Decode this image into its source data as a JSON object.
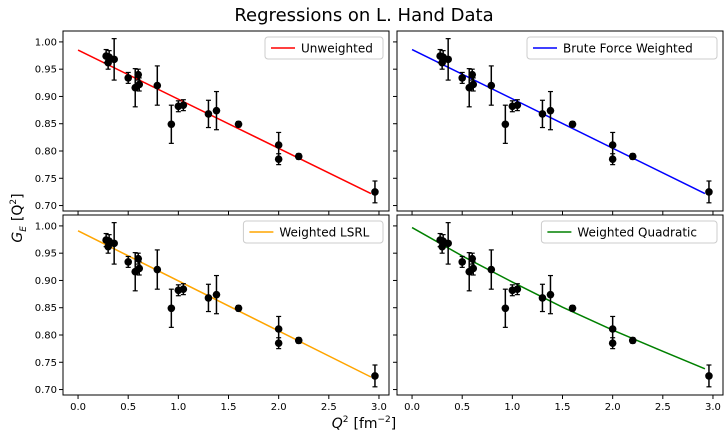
{
  "figure": {
    "title": "Regressions on L. Hand Data",
    "xlabel_main": "Q",
    "xlabel_sup": "2",
    "xlabel_unit": "[fm",
    "xlabel_unit_sup": "−2",
    "xlabel_close": "]",
    "ylabel_main": "G",
    "ylabel_sub": "E",
    "ylabel_unit": "[Q",
    "ylabel_unit_sup": "2",
    "ylabel_close": "]"
  },
  "chart_data": [
    {
      "type": "scatter",
      "legend": "Unweighted",
      "color": "#ff0000",
      "legend_placement": "top-right",
      "xlim": [
        -0.15,
        3.1
      ],
      "ylim": [
        0.69,
        1.02
      ],
      "x_ticks": [
        "0.0",
        "0.5",
        "1.0",
        "1.5",
        "2.0",
        "2.5",
        "3.0"
      ],
      "y_ticks": [
        "1.00",
        "0.95",
        "0.90",
        "0.85",
        "0.80",
        "0.75",
        "0.70"
      ],
      "fit": {
        "x": [
          0.0,
          2.92
        ],
        "y": [
          0.985,
          0.722
        ]
      },
      "points": [
        {
          "x": 0.28,
          "y": 0.974,
          "err": 0.012
        },
        {
          "x": 0.3,
          "y": 0.962,
          "err": 0.012
        },
        {
          "x": 0.31,
          "y": 0.972,
          "err": 0.012
        },
        {
          "x": 0.36,
          "y": 0.968,
          "err": 0.038
        },
        {
          "x": 0.5,
          "y": 0.934,
          "err": 0.01
        },
        {
          "x": 0.57,
          "y": 0.916,
          "err": 0.035
        },
        {
          "x": 0.6,
          "y": 0.94,
          "err": 0.01
        },
        {
          "x": 0.61,
          "y": 0.922,
          "err": 0.012
        },
        {
          "x": 0.79,
          "y": 0.92,
          "err": 0.036
        },
        {
          "x": 0.93,
          "y": 0.849,
          "err": 0.035
        },
        {
          "x": 1.0,
          "y": 0.882,
          "err": 0.01
        },
        {
          "x": 1.05,
          "y": 0.884,
          "err": 0.01
        },
        {
          "x": 1.3,
          "y": 0.868,
          "err": 0.025
        },
        {
          "x": 1.38,
          "y": 0.874,
          "err": 0.035
        },
        {
          "x": 1.6,
          "y": 0.849,
          "err": 0.005
        },
        {
          "x": 2.0,
          "y": 0.811,
          "err": 0.023
        },
        {
          "x": 2.0,
          "y": 0.785,
          "err": 0.01
        },
        {
          "x": 2.2,
          "y": 0.79,
          "err": 0.005
        },
        {
          "x": 2.96,
          "y": 0.725,
          "err": 0.02
        }
      ]
    },
    {
      "type": "scatter",
      "legend": "Brute Force Weighted",
      "color": "#0000ff",
      "legend_placement": "top-right",
      "xlim": [
        -0.15,
        3.1
      ],
      "ylim": [
        0.69,
        1.02
      ],
      "x_ticks": [
        "0.0",
        "0.5",
        "1.0",
        "1.5",
        "2.0",
        "2.5",
        "3.0"
      ],
      "y_ticks": [],
      "fit": {
        "x": [
          0.0,
          2.92
        ],
        "y": [
          0.986,
          0.722
        ]
      },
      "points": [
        {
          "x": 0.28,
          "y": 0.974,
          "err": 0.012
        },
        {
          "x": 0.3,
          "y": 0.962,
          "err": 0.012
        },
        {
          "x": 0.31,
          "y": 0.972,
          "err": 0.012
        },
        {
          "x": 0.36,
          "y": 0.968,
          "err": 0.038
        },
        {
          "x": 0.5,
          "y": 0.934,
          "err": 0.01
        },
        {
          "x": 0.57,
          "y": 0.916,
          "err": 0.035
        },
        {
          "x": 0.6,
          "y": 0.94,
          "err": 0.01
        },
        {
          "x": 0.61,
          "y": 0.922,
          "err": 0.012
        },
        {
          "x": 0.79,
          "y": 0.92,
          "err": 0.036
        },
        {
          "x": 0.93,
          "y": 0.849,
          "err": 0.035
        },
        {
          "x": 1.0,
          "y": 0.882,
          "err": 0.01
        },
        {
          "x": 1.05,
          "y": 0.884,
          "err": 0.01
        },
        {
          "x": 1.3,
          "y": 0.868,
          "err": 0.025
        },
        {
          "x": 1.38,
          "y": 0.874,
          "err": 0.035
        },
        {
          "x": 1.6,
          "y": 0.849,
          "err": 0.005
        },
        {
          "x": 2.0,
          "y": 0.811,
          "err": 0.023
        },
        {
          "x": 2.0,
          "y": 0.785,
          "err": 0.01
        },
        {
          "x": 2.2,
          "y": 0.79,
          "err": 0.005
        },
        {
          "x": 2.96,
          "y": 0.725,
          "err": 0.02
        }
      ]
    },
    {
      "type": "scatter",
      "legend": "Weighted LSRL",
      "color": "#ffa500",
      "legend_placement": "top-right",
      "xlim": [
        -0.15,
        3.1
      ],
      "ylim": [
        0.69,
        1.02
      ],
      "x_ticks": [
        "0.0",
        "0.5",
        "1.0",
        "1.5",
        "2.0",
        "2.5",
        "3.0"
      ],
      "y_ticks": [
        "1.00",
        "0.95",
        "0.90",
        "0.85",
        "0.80",
        "0.75",
        "0.70"
      ],
      "fit": {
        "x": [
          0.0,
          2.92
        ],
        "y": [
          0.991,
          0.723
        ]
      },
      "points": [
        {
          "x": 0.28,
          "y": 0.974,
          "err": 0.012
        },
        {
          "x": 0.3,
          "y": 0.962,
          "err": 0.012
        },
        {
          "x": 0.31,
          "y": 0.972,
          "err": 0.012
        },
        {
          "x": 0.36,
          "y": 0.968,
          "err": 0.038
        },
        {
          "x": 0.5,
          "y": 0.934,
          "err": 0.01
        },
        {
          "x": 0.57,
          "y": 0.916,
          "err": 0.035
        },
        {
          "x": 0.6,
          "y": 0.94,
          "err": 0.01
        },
        {
          "x": 0.61,
          "y": 0.922,
          "err": 0.012
        },
        {
          "x": 0.79,
          "y": 0.92,
          "err": 0.036
        },
        {
          "x": 0.93,
          "y": 0.849,
          "err": 0.035
        },
        {
          "x": 1.0,
          "y": 0.882,
          "err": 0.01
        },
        {
          "x": 1.05,
          "y": 0.884,
          "err": 0.01
        },
        {
          "x": 1.3,
          "y": 0.868,
          "err": 0.025
        },
        {
          "x": 1.38,
          "y": 0.874,
          "err": 0.035
        },
        {
          "x": 1.6,
          "y": 0.849,
          "err": 0.005
        },
        {
          "x": 2.0,
          "y": 0.811,
          "err": 0.023
        },
        {
          "x": 2.0,
          "y": 0.785,
          "err": 0.01
        },
        {
          "x": 2.2,
          "y": 0.79,
          "err": 0.005
        },
        {
          "x": 2.96,
          "y": 0.725,
          "err": 0.02
        }
      ]
    },
    {
      "type": "scatter",
      "legend": "Weighted Quadratic",
      "color": "#008000",
      "legend_placement": "top-right",
      "xlim": [
        -0.15,
        3.1
      ],
      "ylim": [
        0.69,
        1.02
      ],
      "x_ticks": [
        "0.0",
        "0.5",
        "1.0",
        "1.5",
        "2.0",
        "2.5",
        "3.0"
      ],
      "y_ticks": [],
      "fit": {
        "x": [
          0.0,
          0.5,
          1.0,
          1.5,
          2.0,
          2.5,
          2.92
        ],
        "y": [
          0.997,
          0.945,
          0.897,
          0.851,
          0.809,
          0.77,
          0.738
        ]
      },
      "points": [
        {
          "x": 0.28,
          "y": 0.974,
          "err": 0.012
        },
        {
          "x": 0.3,
          "y": 0.962,
          "err": 0.012
        },
        {
          "x": 0.31,
          "y": 0.972,
          "err": 0.012
        },
        {
          "x": 0.36,
          "y": 0.968,
          "err": 0.038
        },
        {
          "x": 0.5,
          "y": 0.934,
          "err": 0.01
        },
        {
          "x": 0.57,
          "y": 0.916,
          "err": 0.035
        },
        {
          "x": 0.6,
          "y": 0.94,
          "err": 0.01
        },
        {
          "x": 0.61,
          "y": 0.922,
          "err": 0.012
        },
        {
          "x": 0.79,
          "y": 0.92,
          "err": 0.036
        },
        {
          "x": 0.93,
          "y": 0.849,
          "err": 0.035
        },
        {
          "x": 1.0,
          "y": 0.882,
          "err": 0.01
        },
        {
          "x": 1.05,
          "y": 0.884,
          "err": 0.01
        },
        {
          "x": 1.3,
          "y": 0.868,
          "err": 0.025
        },
        {
          "x": 1.38,
          "y": 0.874,
          "err": 0.035
        },
        {
          "x": 1.6,
          "y": 0.849,
          "err": 0.005
        },
        {
          "x": 2.0,
          "y": 0.811,
          "err": 0.023
        },
        {
          "x": 2.0,
          "y": 0.785,
          "err": 0.01
        },
        {
          "x": 2.2,
          "y": 0.79,
          "err": 0.005
        },
        {
          "x": 2.96,
          "y": 0.725,
          "err": 0.02
        }
      ]
    }
  ]
}
